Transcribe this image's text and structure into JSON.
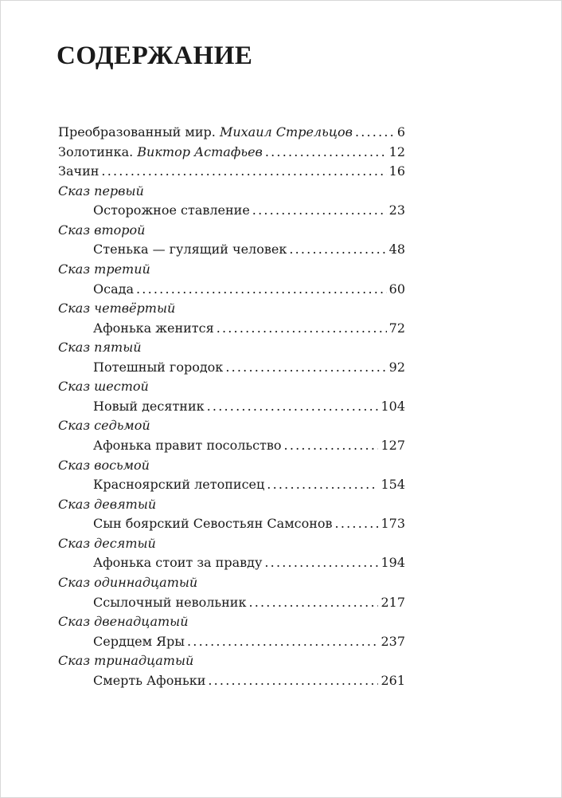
{
  "title": "СОДЕРЖАНИЕ",
  "front": [
    {
      "title": "Преобразованный мир.",
      "author": "Михаил Стрельцов",
      "page": "6"
    },
    {
      "title": "Золотинка.",
      "author": "Виктор Астафьев",
      "page": "12"
    },
    {
      "title": "Зачин",
      "author": "",
      "page": "16"
    }
  ],
  "tales": [
    {
      "heading": "Сказ первый",
      "title": "Осторожное ставление",
      "page": "23"
    },
    {
      "heading": "Сказ второй",
      "title": "Стенька — гулящий человек",
      "page": "48"
    },
    {
      "heading": "Сказ третий",
      "title": "Осада",
      "page": "60"
    },
    {
      "heading": "Сказ четвёртый",
      "title": "Афонька женится",
      "page": "72"
    },
    {
      "heading": "Сказ пятый",
      "title": "Потешный городок",
      "page": "92"
    },
    {
      "heading": "Сказ шестой",
      "title": "Новый десятник",
      "page": "104"
    },
    {
      "heading": "Сказ седьмой",
      "title": "Афонька правит посольство",
      "page": "127"
    },
    {
      "heading": "Сказ восьмой",
      "title": "Красноярский летописец",
      "page": "154"
    },
    {
      "heading": "Сказ девятый",
      "title": "Сын боярский Севостьян Самсонов",
      "page": "173"
    },
    {
      "heading": "Сказ десятый",
      "title": "Афонька стоит за правду",
      "page": "194"
    },
    {
      "heading": "Сказ одиннадцатый",
      "title": "Ссылочный невольник",
      "page": "217"
    },
    {
      "heading": "Сказ двенадцатый",
      "title": "Сердцем Яры",
      "page": "237"
    },
    {
      "heading": "Сказ тринадцатый",
      "title": "Смерть Афоньки",
      "page": "261"
    }
  ]
}
